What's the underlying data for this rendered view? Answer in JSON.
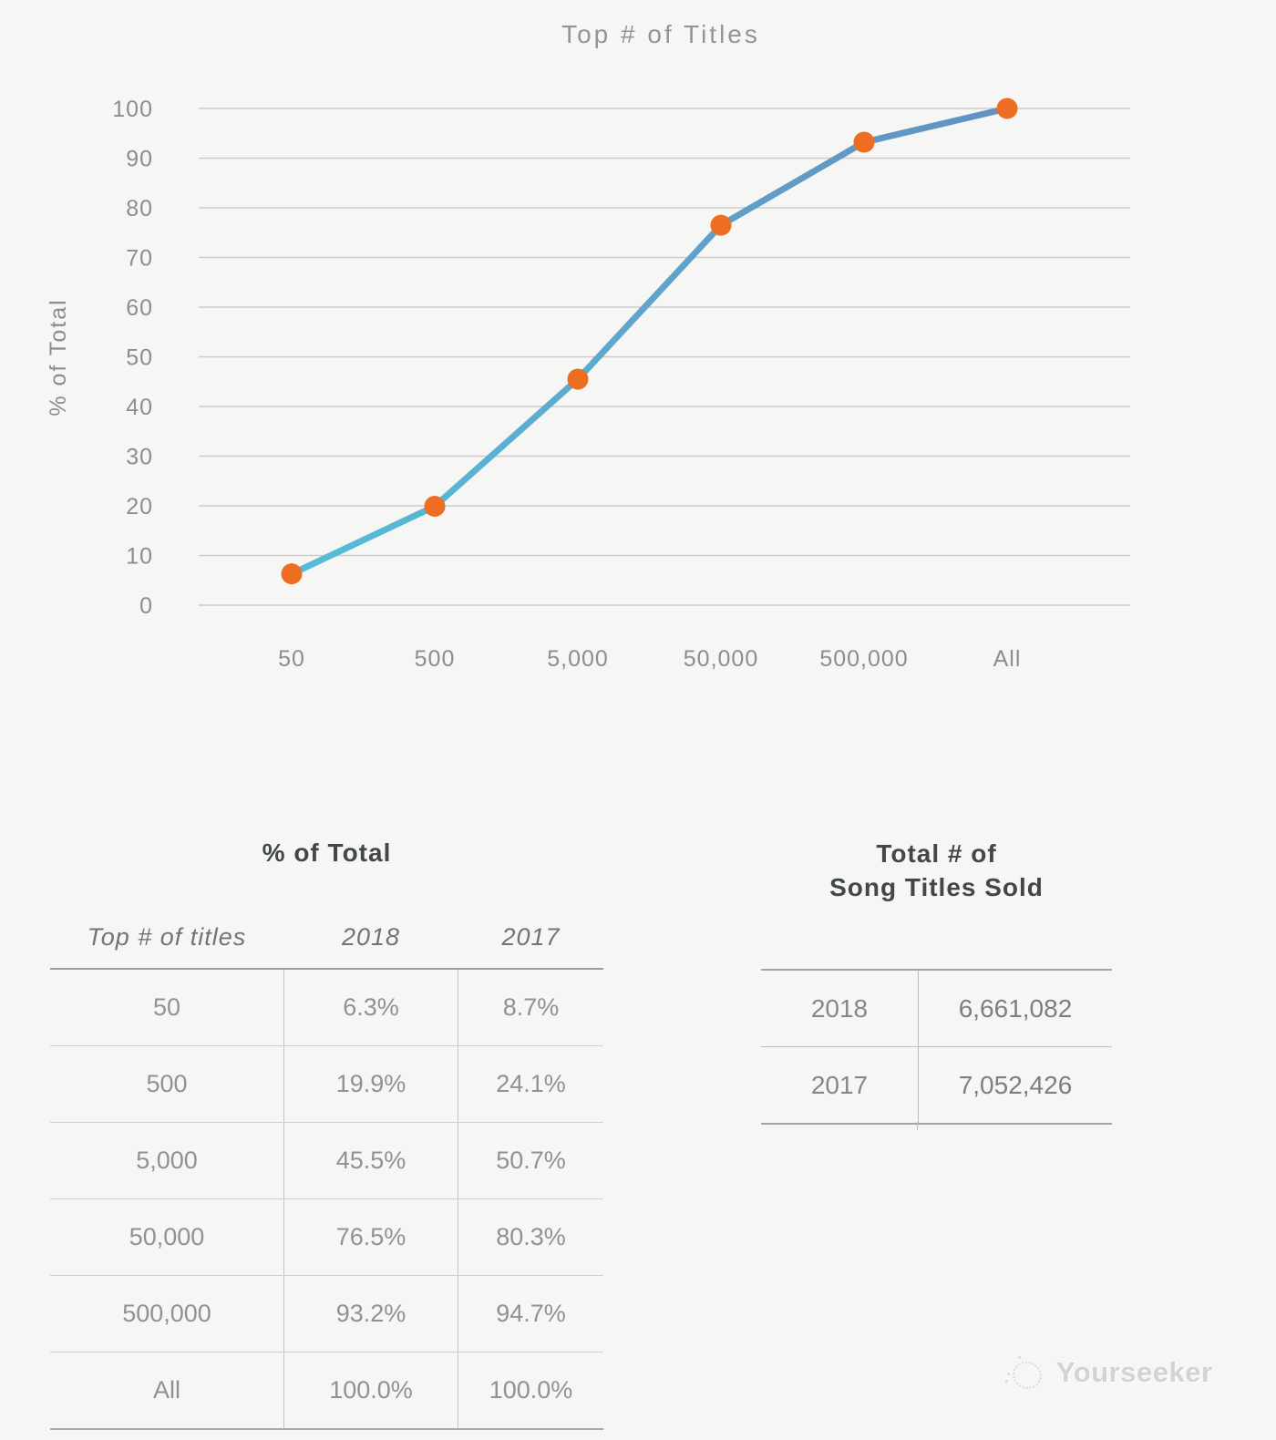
{
  "page": {
    "background": "#f6f6f4"
  },
  "chart_data": {
    "type": "line",
    "title": "Top # of Titles",
    "xlabel": "",
    "ylabel": "% of Total",
    "categories": [
      "50",
      "500",
      "5,000",
      "50,000",
      "500,000",
      "All"
    ],
    "series": [
      {
        "name": "2018",
        "values": [
          6.3,
          19.9,
          45.5,
          76.5,
          93.2,
          100.0
        ]
      }
    ],
    "ylim": [
      0,
      100
    ],
    "ytick_step": 10,
    "grid": "horizontal",
    "legend_position": "none",
    "line_color_start": "#54bdd7",
    "line_color_end": "#6292c1",
    "marker_color": "#ed6e23",
    "gridline_color": "#cccccc"
  },
  "tables": {
    "pct": {
      "title": "% of Total",
      "columns": [
        "Top # of titles",
        "2018",
        "2017"
      ],
      "rows": [
        [
          "50",
          "6.3%",
          "8.7%"
        ],
        [
          "500",
          "19.9%",
          "24.1%"
        ],
        [
          "5,000",
          "45.5%",
          "50.7%"
        ],
        [
          "50,000",
          "76.5%",
          "80.3%"
        ],
        [
          "500,000",
          "93.2%",
          "94.7%"
        ],
        [
          "All",
          "100.0%",
          "100.0%"
        ]
      ]
    },
    "totals": {
      "title_line1": "Total # of",
      "title_line2": "Song Titles Sold",
      "rows": [
        {
          "year": "2018",
          "value": "6,661,082"
        },
        {
          "year": "2017",
          "value": "7,052,426"
        }
      ]
    }
  },
  "watermark": {
    "label": "Yourseeker"
  }
}
